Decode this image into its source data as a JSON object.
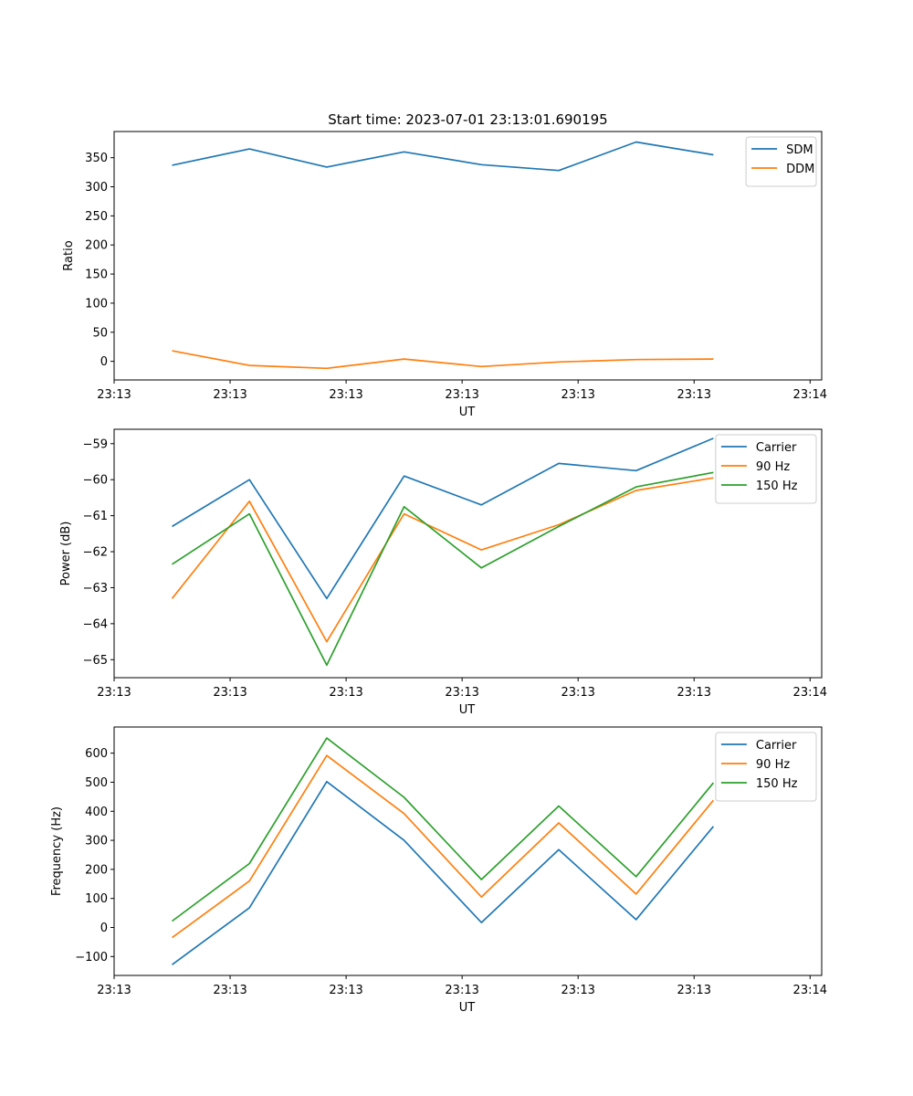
{
  "figure_title": "Start time: 2023-07-01 23:13:01.690195",
  "chart_data": [
    {
      "type": "line",
      "title": "Start time: 2023-07-01 23:13:01.690195",
      "xlabel": "UT",
      "ylabel": "Ratio",
      "xlim": [
        -0.75,
        8.4
      ],
      "ylim": [
        -32,
        395
      ],
      "x_ticks": [
        -0.75,
        0.75,
        2.25,
        3.75,
        5.25,
        6.75,
        8.25
      ],
      "x_tick_labels": [
        "23:13",
        "23:13",
        "23:13",
        "23:13",
        "23:13",
        "23:13",
        "23:14"
      ],
      "y_ticks": [
        0,
        50,
        100,
        150,
        200,
        250,
        300,
        350
      ],
      "y_tick_labels": [
        "0",
        "50",
        "100",
        "150",
        "200",
        "250",
        "300",
        "350"
      ],
      "legend_position": "top-right",
      "x": [
        0,
        1,
        2,
        3,
        4,
        5,
        6,
        7
      ],
      "series": [
        {
          "name": "SDM",
          "color": "#1f77b4",
          "values": [
            337,
            365,
            334,
            360,
            338,
            328,
            377,
            355
          ]
        },
        {
          "name": "DDM",
          "color": "#ff7f0e",
          "values": [
            18,
            -7,
            -12,
            4,
            -9,
            -1,
            3,
            4
          ]
        }
      ]
    },
    {
      "type": "line",
      "title": "",
      "xlabel": "UT",
      "ylabel": "Power (dB)",
      "xlim": [
        -0.75,
        8.4
      ],
      "ylim": [
        -65.5,
        -58.6
      ],
      "x_ticks": [
        -0.75,
        0.75,
        2.25,
        3.75,
        5.25,
        6.75,
        8.25
      ],
      "x_tick_labels": [
        "23:13",
        "23:13",
        "23:13",
        "23:13",
        "23:13",
        "23:13",
        "23:14"
      ],
      "y_ticks": [
        -65,
        -64,
        -63,
        -62,
        -61,
        -60,
        -59
      ],
      "y_tick_labels": [
        "−65",
        "−64",
        "−63",
        "−62",
        "−61",
        "−60",
        "−59"
      ],
      "legend_position": "top-right",
      "x": [
        0,
        1,
        2,
        3,
        4,
        5,
        6,
        7
      ],
      "series": [
        {
          "name": "Carrier",
          "color": "#1f77b4",
          "values": [
            -61.3,
            -60.0,
            -63.3,
            -59.9,
            -60.7,
            -59.55,
            -59.75,
            -58.85
          ]
        },
        {
          "name": "90 Hz",
          "color": "#ff7f0e",
          "values": [
            -63.3,
            -60.6,
            -64.5,
            -60.95,
            -61.95,
            -61.25,
            -60.3,
            -59.95
          ]
        },
        {
          "name": "150 Hz",
          "color": "#2ca02c",
          "values": [
            -62.35,
            -60.95,
            -65.15,
            -60.75,
            -62.45,
            -61.3,
            -60.2,
            -59.8
          ]
        }
      ]
    },
    {
      "type": "line",
      "title": "",
      "xlabel": "UT",
      "ylabel": "Frequency (Hz)",
      "xlim": [
        -0.75,
        8.4
      ],
      "ylim": [
        -165,
        690
      ],
      "x_ticks": [
        -0.75,
        0.75,
        2.25,
        3.75,
        5.25,
        6.75,
        8.25
      ],
      "x_tick_labels": [
        "23:13",
        "23:13",
        "23:13",
        "23:13",
        "23:13",
        "23:13",
        "23:14"
      ],
      "y_ticks": [
        -100,
        0,
        100,
        200,
        300,
        400,
        500,
        600
      ],
      "y_tick_labels": [
        "−100",
        "0",
        "100",
        "200",
        "300",
        "400",
        "500",
        "600"
      ],
      "legend_position": "top-right",
      "x": [
        0,
        1,
        2,
        3,
        4,
        5,
        6,
        7
      ],
      "series": [
        {
          "name": "Carrier",
          "color": "#1f77b4",
          "values": [
            -128,
            68,
            502,
            300,
            17,
            268,
            27,
            348
          ]
        },
        {
          "name": "90 Hz",
          "color": "#ff7f0e",
          "values": [
            -35,
            160,
            592,
            392,
            105,
            360,
            115,
            438
          ]
        },
        {
          "name": "150 Hz",
          "color": "#2ca02c",
          "values": [
            22,
            220,
            652,
            448,
            165,
            418,
            175,
            498
          ]
        }
      ]
    }
  ]
}
